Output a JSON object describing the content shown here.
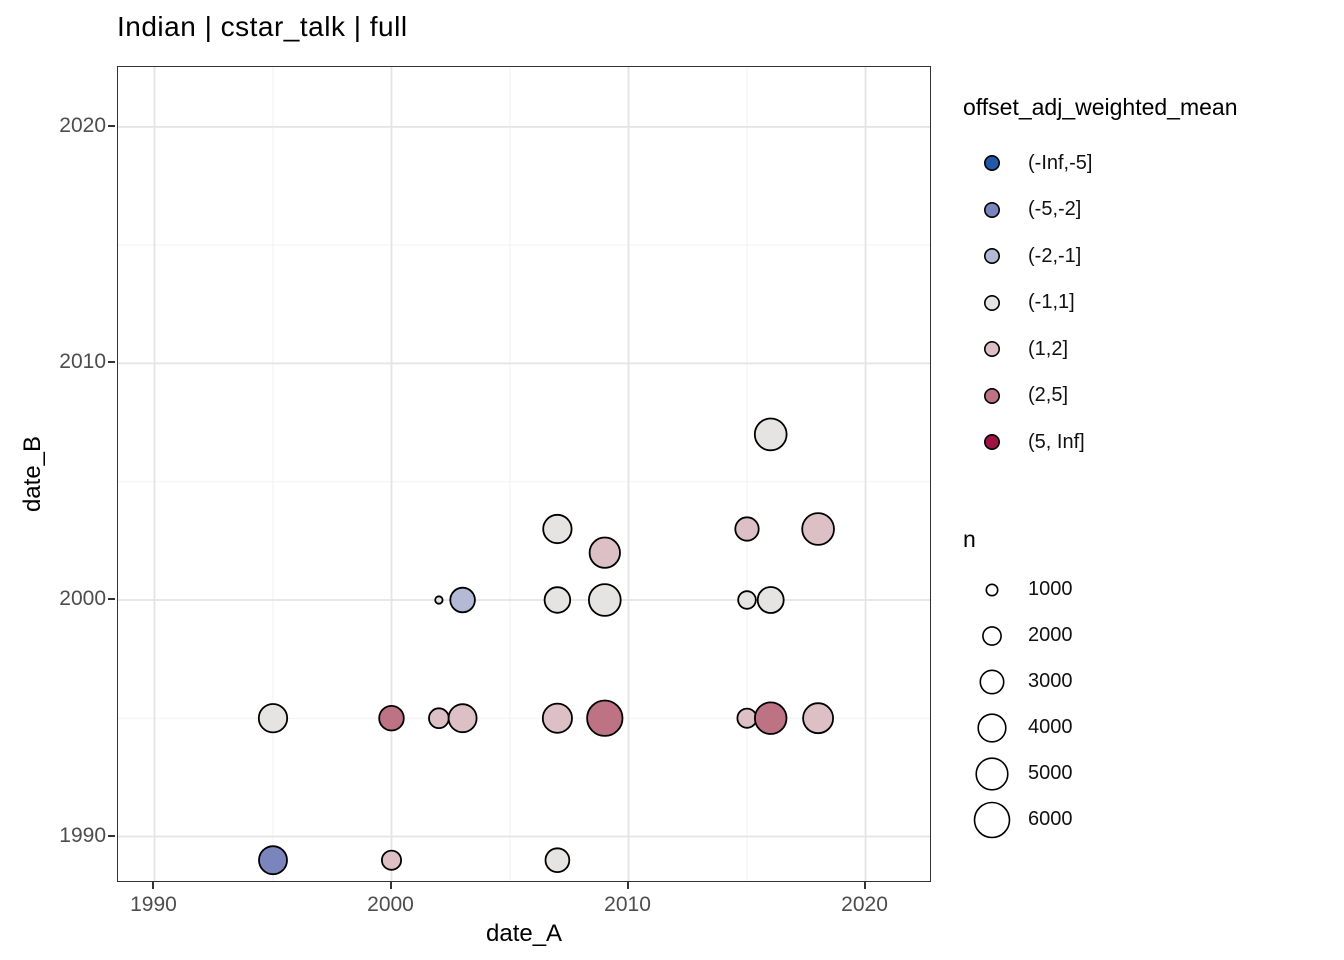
{
  "chart_data": {
    "type": "scatter",
    "title": "Indian | cstar_talk | full",
    "xlabel": "date_A",
    "ylabel": "date_B",
    "xlim": [
      1988.46,
      2022.72
    ],
    "ylim": [
      1988.12,
      2022.53
    ],
    "x_ticks": [
      1990,
      2000,
      2010,
      2020
    ],
    "y_ticks": [
      1990,
      2000,
      2010,
      2020
    ],
    "x_minor_ticks": [
      1995,
      2005,
      2015
    ],
    "y_minor_ticks": [
      1995,
      2005,
      2015
    ],
    "grid": "major+minor",
    "legend_position": "right",
    "color_legend": {
      "title": "offset_adj_weighted_mean",
      "bins": [
        {
          "label": "(-Inf,-5]",
          "color": "#2158a8"
        },
        {
          "label": "(-5,-2]",
          "color": "#7b85bd"
        },
        {
          "label": "(-2,-1]",
          "color": "#b4bad6"
        },
        {
          "label": "(-1,1]",
          "color": "#e5e4e2"
        },
        {
          "label": "(1,2]",
          "color": "#dcc0c6"
        },
        {
          "label": "(2,5]",
          "color": "#bd7384"
        },
        {
          "label": "(5, Inf]",
          "color": "#9e1342"
        }
      ]
    },
    "size_legend": {
      "title": "n",
      "values": [
        1000,
        2000,
        3000,
        4000,
        5000,
        6000
      ]
    },
    "points": [
      {
        "x": 1995,
        "y": 1995,
        "n": 4200,
        "bin": "(-1,1]"
      },
      {
        "x": 1995,
        "y": 1989,
        "n": 4100,
        "bin": "(-5,-2]"
      },
      {
        "x": 2000,
        "y": 1995,
        "n": 3300,
        "bin": "(2,5]"
      },
      {
        "x": 2000,
        "y": 1989,
        "n": 2200,
        "bin": "(1,2]"
      },
      {
        "x": 2002,
        "y": 2000,
        "n": 570,
        "bin": "(-1,1]"
      },
      {
        "x": 2002,
        "y": 1995,
        "n": 2300,
        "bin": "(1,2]"
      },
      {
        "x": 2003,
        "y": 2000,
        "n": 3300,
        "bin": "(-2,-1]"
      },
      {
        "x": 2003,
        "y": 1995,
        "n": 4100,
        "bin": "(1,2]"
      },
      {
        "x": 2007,
        "y": 2003,
        "n": 4200,
        "bin": "(-1,1]"
      },
      {
        "x": 2007,
        "y": 2000,
        "n": 3500,
        "bin": "(-1,1]"
      },
      {
        "x": 2007,
        "y": 1995,
        "n": 4400,
        "bin": "(1,2]"
      },
      {
        "x": 2007,
        "y": 1989,
        "n": 3100,
        "bin": "(-1,1]"
      },
      {
        "x": 2009,
        "y": 2002,
        "n": 4700,
        "bin": "(1,2]"
      },
      {
        "x": 2009,
        "y": 2000,
        "n": 5100,
        "bin": "(-1,1]"
      },
      {
        "x": 2009,
        "y": 1995,
        "n": 6100,
        "bin": "(2,5]"
      },
      {
        "x": 2015,
        "y": 2003,
        "n": 3000,
        "bin": "(1,2]"
      },
      {
        "x": 2015,
        "y": 2000,
        "n": 1900,
        "bin": "(-1,1]"
      },
      {
        "x": 2015,
        "y": 1995,
        "n": 2200,
        "bin": "(1,2]"
      },
      {
        "x": 2016,
        "y": 2007,
        "n": 5100,
        "bin": "(-1,1]"
      },
      {
        "x": 2016,
        "y": 2000,
        "n": 3600,
        "bin": "(-1,1]"
      },
      {
        "x": 2016,
        "y": 1995,
        "n": 5000,
        "bin": "(2,5]"
      },
      {
        "x": 2018,
        "y": 2003,
        "n": 5100,
        "bin": "(1,2]"
      },
      {
        "x": 2018,
        "y": 1995,
        "n": 4600,
        "bin": "(1,2]"
      }
    ]
  },
  "colors": {
    "panel_border": "#333333",
    "grid_major": "#e4e4e4",
    "grid_minor": "#f2f2f2",
    "point_stroke": "#000000",
    "tick_label": "#4d4d4d"
  }
}
